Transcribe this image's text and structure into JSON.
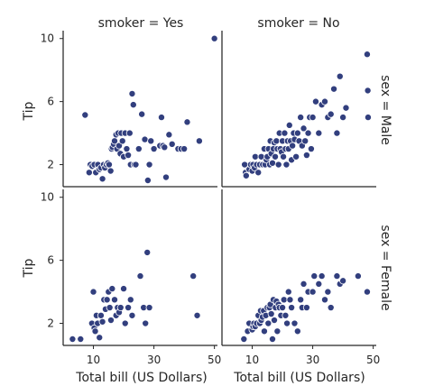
{
  "chart_data": {
    "type": "scatter",
    "grid": false,
    "xlabel": "Total bill (US Dollars)",
    "ylabel": "Tip",
    "x_ticks": [
      10,
      30,
      50
    ],
    "y_ticks": [
      2,
      6,
      10
    ],
    "xlim": [
      0,
      51
    ],
    "ylim": [
      0.6,
      10.5
    ],
    "point_color": "#323f7e",
    "panels": [
      {
        "col_title": "smoker = Yes",
        "row_title": "",
        "points": [
          [
            7.25,
            5.15
          ],
          [
            8.6,
            1.5
          ],
          [
            9.0,
            2.0
          ],
          [
            9.6,
            1.9
          ],
          [
            10.3,
            2.0
          ],
          [
            10.8,
            1.5
          ],
          [
            11.5,
            2.0
          ],
          [
            12.0,
            1.7
          ],
          [
            12.5,
            1.8
          ],
          [
            13.0,
            1.1
          ],
          [
            13.4,
            2.0
          ],
          [
            13.8,
            1.8
          ],
          [
            14.3,
            2.0
          ],
          [
            14.8,
            2.1
          ],
          [
            15.2,
            2.0
          ],
          [
            15.7,
            1.6
          ],
          [
            16.0,
            3.0
          ],
          [
            16.3,
            3.1
          ],
          [
            16.7,
            3.3
          ],
          [
            17.0,
            3.5
          ],
          [
            17.5,
            3.9
          ],
          [
            17.8,
            3.0
          ],
          [
            18.2,
            4.0
          ],
          [
            18.5,
            3.2
          ],
          [
            18.9,
            2.7
          ],
          [
            19.2,
            4.0
          ],
          [
            19.6,
            3.5
          ],
          [
            20.0,
            2.5
          ],
          [
            20.5,
            4.0
          ],
          [
            21.0,
            3.0
          ],
          [
            21.5,
            2.6
          ],
          [
            22.0,
            4.0
          ],
          [
            22.3,
            2.0
          ],
          [
            22.8,
            6.5
          ],
          [
            23.2,
            5.8
          ],
          [
            23.5,
            2.0
          ],
          [
            24.0,
            2.0
          ],
          [
            25.0,
            3.0
          ],
          [
            26.0,
            5.2
          ],
          [
            27.0,
            3.6
          ],
          [
            28.0,
            1.0
          ],
          [
            28.5,
            2.0
          ],
          [
            29.0,
            3.5
          ],
          [
            30.0,
            3.0
          ],
          [
            32.0,
            3.2
          ],
          [
            32.5,
            5.0
          ],
          [
            33.0,
            3.2
          ],
          [
            33.5,
            3.1
          ],
          [
            34.0,
            1.2
          ],
          [
            35.0,
            3.9
          ],
          [
            36.0,
            3.3
          ],
          [
            38.0,
            3.0
          ],
          [
            39.0,
            3.0
          ],
          [
            40.0,
            3.0
          ],
          [
            41.0,
            4.7
          ],
          [
            45.0,
            3.5
          ],
          [
            50.0,
            10.0
          ]
        ]
      },
      {
        "col_title": "smoker = No",
        "row_title": "sex = Male",
        "points": [
          [
            7.5,
            2.0
          ],
          [
            7.8,
            1.5
          ],
          [
            8.0,
            1.3
          ],
          [
            9.0,
            1.7
          ],
          [
            9.5,
            2.0
          ],
          [
            10.0,
            1.6
          ],
          [
            10.3,
            2.0
          ],
          [
            10.8,
            1.8
          ],
          [
            11.0,
            2.5
          ],
          [
            11.5,
            2.0
          ],
          [
            12.0,
            1.5
          ],
          [
            12.5,
            2.0
          ],
          [
            13.0,
            2.5
          ],
          [
            13.5,
            2.0
          ],
          [
            14.0,
            3.0
          ],
          [
            14.3,
            2.0
          ],
          [
            14.7,
            2.3
          ],
          [
            15.0,
            2.5
          ],
          [
            15.4,
            3.0
          ],
          [
            15.8,
            2.0
          ],
          [
            16.0,
            3.5
          ],
          [
            16.3,
            2.7
          ],
          [
            16.7,
            2.1
          ],
          [
            17.0,
            3.0
          ],
          [
            17.3,
            3.4
          ],
          [
            17.6,
            2.5
          ],
          [
            18.0,
            3.5
          ],
          [
            18.3,
            3.0
          ],
          [
            18.7,
            2.0
          ],
          [
            19.0,
            4.0
          ],
          [
            19.3,
            3.0
          ],
          [
            19.7,
            2.8
          ],
          [
            20.0,
            3.5
          ],
          [
            20.3,
            2.5
          ],
          [
            20.7,
            4.0
          ],
          [
            21.0,
            3.0
          ],
          [
            21.3,
            2.0
          ],
          [
            21.7,
            3.5
          ],
          [
            22.0,
            3.0
          ],
          [
            22.3,
            4.5
          ],
          [
            22.7,
            3.5
          ],
          [
            23.0,
            2.3
          ],
          [
            23.3,
            3.2
          ],
          [
            23.7,
            4.0
          ],
          [
            24.0,
            3.6
          ],
          [
            24.5,
            2.5
          ],
          [
            25.0,
            4.0
          ],
          [
            25.5,
            3.5
          ],
          [
            26.0,
            5.0
          ],
          [
            26.5,
            3.2
          ],
          [
            27.0,
            4.3
          ],
          [
            27.5,
            3.5
          ],
          [
            28.0,
            2.6
          ],
          [
            28.5,
            4.0
          ],
          [
            29.0,
            5.0
          ],
          [
            29.5,
            3.0
          ],
          [
            30.0,
            5.0
          ],
          [
            31.0,
            6.0
          ],
          [
            32.0,
            4.0
          ],
          [
            33.0,
            5.8
          ],
          [
            34.0,
            6.0
          ],
          [
            35.0,
            5.0
          ],
          [
            36.0,
            5.2
          ],
          [
            37.0,
            6.8
          ],
          [
            38.0,
            4.0
          ],
          [
            39.0,
            7.6
          ],
          [
            40.0,
            5.0
          ],
          [
            41.0,
            5.6
          ],
          [
            48.0,
            9.0
          ],
          [
            48.2,
            6.7
          ],
          [
            48.3,
            5.0
          ]
        ]
      },
      {
        "col_title": "",
        "row_title": "",
        "points": [
          [
            3.1,
            1.0
          ],
          [
            5.75,
            1.0
          ],
          [
            9.5,
            2.0
          ],
          [
            10.3,
            1.7
          ],
          [
            10.6,
            1.5
          ],
          [
            11.0,
            2.5
          ],
          [
            11.4,
            2.0
          ],
          [
            12.0,
            1.1
          ],
          [
            12.5,
            2.5
          ],
          [
            13.0,
            2.1
          ],
          [
            13.5,
            3.5
          ],
          [
            14.0,
            2.9
          ],
          [
            14.5,
            3.5
          ],
          [
            15.0,
            4.0
          ],
          [
            15.4,
            3.0
          ],
          [
            15.8,
            2.2
          ],
          [
            16.2,
            4.2
          ],
          [
            17.0,
            3.5
          ],
          [
            17.5,
            2.5
          ],
          [
            18.0,
            3.0
          ],
          [
            18.5,
            2.7
          ],
          [
            19.0,
            3.0
          ],
          [
            20.0,
            4.2
          ],
          [
            20.5,
            2.0
          ],
          [
            21.5,
            3.0
          ],
          [
            22.3,
            3.5
          ],
          [
            22.8,
            2.5
          ],
          [
            25.5,
            5.0
          ],
          [
            26.6,
            3.0
          ],
          [
            27.2,
            2.0
          ],
          [
            27.8,
            6.5
          ],
          [
            28.5,
            3.0
          ],
          [
            43.0,
            5.0
          ],
          [
            44.3,
            2.5
          ],
          [
            10.0,
            4.0
          ]
        ]
      },
      {
        "col_title": "",
        "row_title": "sex = Female",
        "points": [
          [
            7.25,
            1.0
          ],
          [
            8.5,
            1.5
          ],
          [
            9.0,
            2.0
          ],
          [
            10.0,
            1.6
          ],
          [
            10.3,
            1.8
          ],
          [
            10.6,
            2.0
          ],
          [
            11.0,
            1.8
          ],
          [
            11.5,
            2.0
          ],
          [
            12.0,
            2.5
          ],
          [
            12.5,
            2.0
          ],
          [
            12.8,
            2.8
          ],
          [
            13.0,
            2.2
          ],
          [
            13.4,
            2.4
          ],
          [
            13.8,
            2.8
          ],
          [
            14.0,
            1.5
          ],
          [
            14.5,
            2.5
          ],
          [
            15.0,
            3.0
          ],
          [
            15.3,
            2.0
          ],
          [
            15.7,
            3.0
          ],
          [
            16.0,
            3.2
          ],
          [
            16.3,
            2.6
          ],
          [
            16.7,
            1.0
          ],
          [
            17.0,
            3.5
          ],
          [
            17.3,
            2.2
          ],
          [
            17.7,
            3.0
          ],
          [
            18.0,
            3.4
          ],
          [
            18.3,
            1.5
          ],
          [
            18.7,
            3.2
          ],
          [
            19.0,
            3.0
          ],
          [
            19.5,
            2.5
          ],
          [
            20.0,
            3.0
          ],
          [
            20.5,
            3.5
          ],
          [
            21.0,
            2.5
          ],
          [
            21.5,
            2.0
          ],
          [
            22.0,
            4.0
          ],
          [
            22.5,
            3.5
          ],
          [
            23.0,
            3.0
          ],
          [
            24.0,
            2.0
          ],
          [
            25.0,
            1.5
          ],
          [
            26.0,
            3.5
          ],
          [
            26.5,
            3.0
          ],
          [
            27.0,
            4.5
          ],
          [
            28.0,
            3.0
          ],
          [
            28.5,
            4.0
          ],
          [
            30.0,
            4.0
          ],
          [
            30.5,
            5.0
          ],
          [
            32.0,
            4.5
          ],
          [
            33.0,
            5.0
          ],
          [
            34.0,
            3.5
          ],
          [
            35.0,
            4.0
          ],
          [
            36.0,
            3.0
          ],
          [
            38.0,
            5.0
          ],
          [
            39.0,
            4.5
          ],
          [
            40.0,
            4.7
          ],
          [
            45.0,
            5.0
          ],
          [
            48.0,
            4.0
          ]
        ]
      }
    ]
  }
}
